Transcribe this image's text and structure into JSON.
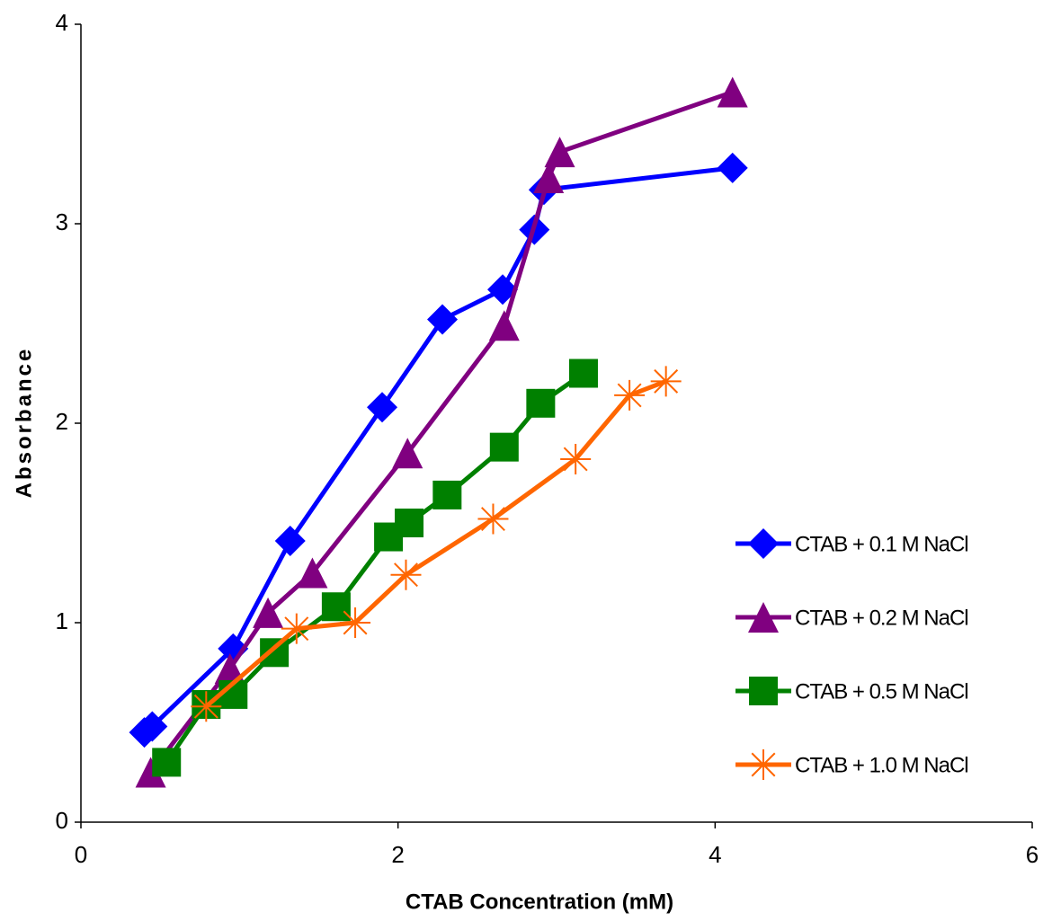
{
  "chart_data": {
    "type": "line",
    "xlabel": "CTAB Concentration (mM)",
    "ylabel": "Absorbance",
    "xlim": [
      0,
      6
    ],
    "xticks": [
      0,
      2,
      4,
      6
    ],
    "ylim": [
      0,
      4
    ],
    "yticks": [
      0,
      1,
      2,
      3,
      4
    ],
    "grid": false,
    "legend": "right",
    "series": [
      {
        "name": "CTAB + 0.1 M NaCl",
        "color": "#0000ff",
        "marker": "diamond",
        "x": [
          0.4,
          0.45,
          0.96,
          1.32,
          1.9,
          2.28,
          2.66,
          2.86,
          2.92,
          4.11
        ],
        "values": [
          0.45,
          0.48,
          0.87,
          1.41,
          2.08,
          2.52,
          2.67,
          2.97,
          3.17,
          3.28
        ]
      },
      {
        "name": "CTAB + 0.2 M NaCl",
        "color": "#800080",
        "marker": "triangle",
        "x": [
          0.44,
          0.94,
          1.18,
          1.46,
          2.06,
          2.67,
          2.95,
          3.02,
          4.11
        ],
        "values": [
          0.25,
          0.77,
          1.05,
          1.25,
          1.85,
          2.49,
          3.23,
          3.36,
          3.66
        ]
      },
      {
        "name": "CTAB + 0.5 M NaCl",
        "color": "#008000",
        "marker": "square",
        "x": [
          0.54,
          0.79,
          0.96,
          1.22,
          1.61,
          1.94,
          2.07,
          2.31,
          2.67,
          2.9,
          3.17
        ],
        "values": [
          0.3,
          0.59,
          0.64,
          0.85,
          1.08,
          1.43,
          1.5,
          1.64,
          1.88,
          2.1,
          2.25
        ]
      },
      {
        "name": "CTAB + 1.0 M NaCl",
        "color": "#ff6600",
        "marker": "star",
        "x": [
          0.79,
          1.36,
          1.73,
          2.05,
          2.6,
          3.12,
          3.46,
          3.69
        ],
        "values": [
          0.58,
          0.97,
          1.0,
          1.24,
          1.52,
          1.82,
          2.14,
          2.21
        ]
      }
    ]
  }
}
